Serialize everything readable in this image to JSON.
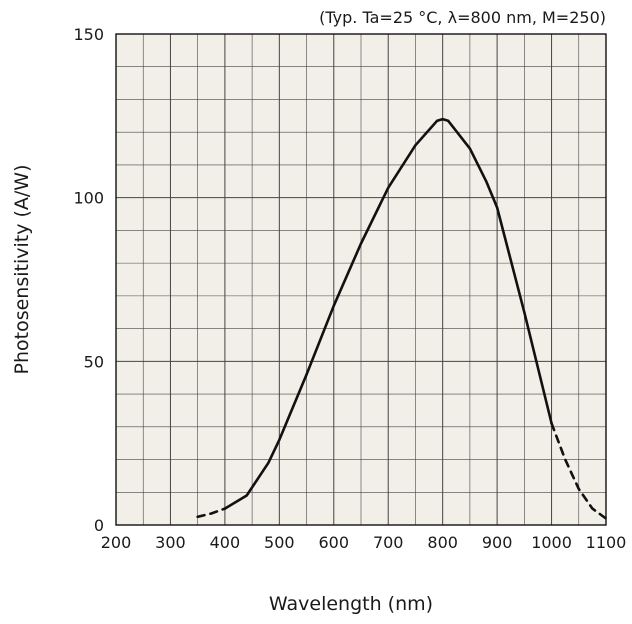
{
  "chart_data": {
    "type": "line",
    "title": "",
    "condition_note": "(Typ. Ta=25 °C, λ=800 nm, M=250)",
    "xlabel": "Wavelength (nm)",
    "ylabel": "Photosensitivity (A/W)",
    "xlim": [
      200,
      1100
    ],
    "ylim": [
      0,
      150
    ],
    "x_ticks": [
      200,
      300,
      400,
      500,
      600,
      700,
      800,
      900,
      1000,
      1100
    ],
    "y_ticks": [
      0,
      50,
      100,
      150
    ],
    "x_tick_labels": [
      "200",
      "300",
      "400",
      "500",
      "600",
      "700",
      "800",
      "900",
      "1000",
      "1100"
    ],
    "y_tick_labels": [
      "0",
      "50",
      "100",
      "150"
    ],
    "x_minor_step": 50,
    "y_minor_step": 10,
    "grid": true,
    "plot_background": "#f1efe7",
    "line_color": "#111111",
    "series": [
      {
        "style": "solid",
        "points": [
          [
            400,
            5
          ],
          [
            440,
            9
          ],
          [
            480,
            19
          ],
          [
            500,
            26
          ],
          [
            550,
            46
          ],
          [
            600,
            67
          ],
          [
            650,
            86
          ],
          [
            700,
            103
          ],
          [
            750,
            116
          ],
          [
            790,
            123.5
          ],
          [
            800,
            124
          ],
          [
            810,
            123.5
          ],
          [
            850,
            115
          ],
          [
            880,
            105
          ],
          [
            900,
            97
          ],
          [
            950,
            65
          ],
          [
            1000,
            31
          ]
        ]
      },
      {
        "style": "dashed",
        "points": [
          [
            350,
            2.5
          ],
          [
            375,
            3.5
          ],
          [
            400,
            5
          ]
        ]
      },
      {
        "style": "dashed",
        "points": [
          [
            1000,
            31
          ],
          [
            1025,
            20
          ],
          [
            1050,
            11
          ],
          [
            1075,
            5
          ],
          [
            1100,
            2
          ]
        ]
      }
    ]
  }
}
